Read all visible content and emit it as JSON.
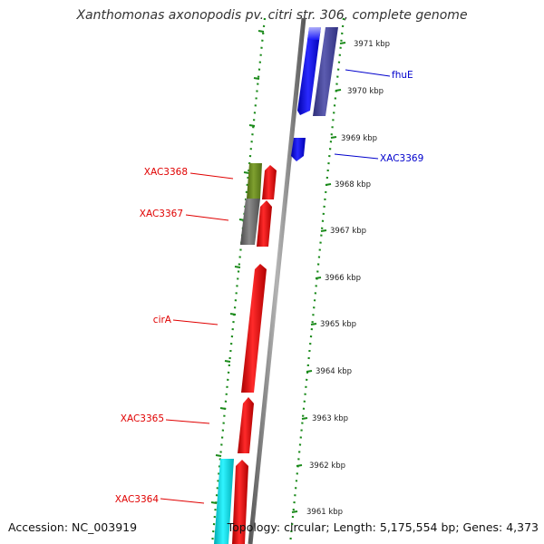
{
  "title": "Xanthomonas axonopodis pv. citri str. 306, complete genome",
  "footer": {
    "accession": "Accession: NC_003919",
    "topology": "Topology: circular; Length: 5,175,554 bp; Genes: 4,373"
  },
  "colors": {
    "forward_gene": "#ff1a1a",
    "reverse_gene": "#1a1aff",
    "dotted_track": "#1a8a1a",
    "backbone": "#8a8a8a",
    "label_red": "#e00000",
    "label_blue": "#0000cc",
    "cyan_gene": "#00e5ee",
    "olive_gene": "#6b8e23",
    "gray_gene": "#707070",
    "slate_gene": "#4a4aa0"
  },
  "kbp_ticks": [
    "3971 kbp",
    "3970 kbp",
    "3969 kbp",
    "3968 kbp",
    "3967 kbp",
    "3966 kbp",
    "3965 kbp",
    "3964 kbp",
    "3963 kbp",
    "3962 kbp",
    "3961 kbp"
  ],
  "genes": [
    {
      "name": "fhuE",
      "strand": "reverse",
      "color_key": "label_blue"
    },
    {
      "name": "XAC3369",
      "strand": "reverse",
      "color_key": "label_blue"
    },
    {
      "name": "XAC3368",
      "strand": "forward",
      "color_key": "label_red"
    },
    {
      "name": "XAC3367",
      "strand": "forward",
      "color_key": "label_red"
    },
    {
      "name": "cirA",
      "strand": "forward",
      "color_key": "label_red"
    },
    {
      "name": "XAC3365",
      "strand": "forward",
      "color_key": "label_red"
    },
    {
      "name": "XAC3364",
      "strand": "forward",
      "color_key": "label_red"
    }
  ]
}
